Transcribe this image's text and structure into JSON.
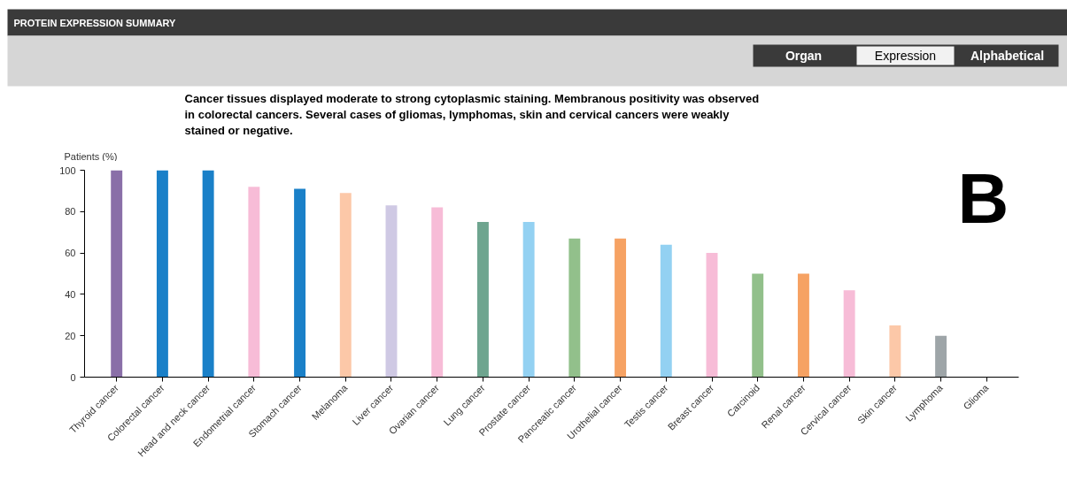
{
  "chart_data": {
    "type": "bar",
    "title": "PROTEIN EXPRESSION SUMMARY",
    "subtitle": "Cancer tissues displayed moderate to strong cytoplasmic staining. Membranous positivity was observed in colorectal cancers. Several cases of gliomas, lymphomas, skin and cervical cancers were weakly stained or negative.",
    "ylabel": "Patients (%)",
    "categories": [
      "Thyroid cancer",
      "Colorectal cancer",
      "Head and neck cancer",
      "Endometrial cancer",
      "Stomach cancer",
      "Melanoma",
      "Liver cancer",
      "Ovarian cancer",
      "Lung cancer",
      "Prostate cancer",
      "Pancreatic cancer",
      "Urothelial cancer",
      "Testis cancer",
      "Breast cancer",
      "Carcinoid",
      "Renal cancer",
      "Cervical cancer",
      "Skin cancer",
      "Lymphoma",
      "Glioma"
    ],
    "values": [
      100,
      100,
      100,
      92,
      91,
      89,
      83,
      82,
      75,
      75,
      67,
      67,
      64,
      60,
      50,
      50,
      42,
      25,
      20,
      0
    ],
    "colors": [
      "#8a6fa8",
      "#1a80c8",
      "#1a80c8",
      "#f7bcd7",
      "#1a80c8",
      "#fcc8a8",
      "#cfc9e4",
      "#f7bcd7",
      "#6ea58f",
      "#93d1f2",
      "#92c08b",
      "#f6a263",
      "#93d1f2",
      "#f7bcd7",
      "#92c08b",
      "#f6a263",
      "#f7bcd7",
      "#fcc8a8",
      "#9ea5a8",
      "#9ea5a8"
    ],
    "ylim": [
      0,
      100
    ],
    "yticks": [
      0,
      20,
      40,
      60,
      80,
      100
    ],
    "grid": false,
    "annotations": [
      "Organ",
      "Expression",
      "Alphabetical",
      "B"
    ]
  }
}
